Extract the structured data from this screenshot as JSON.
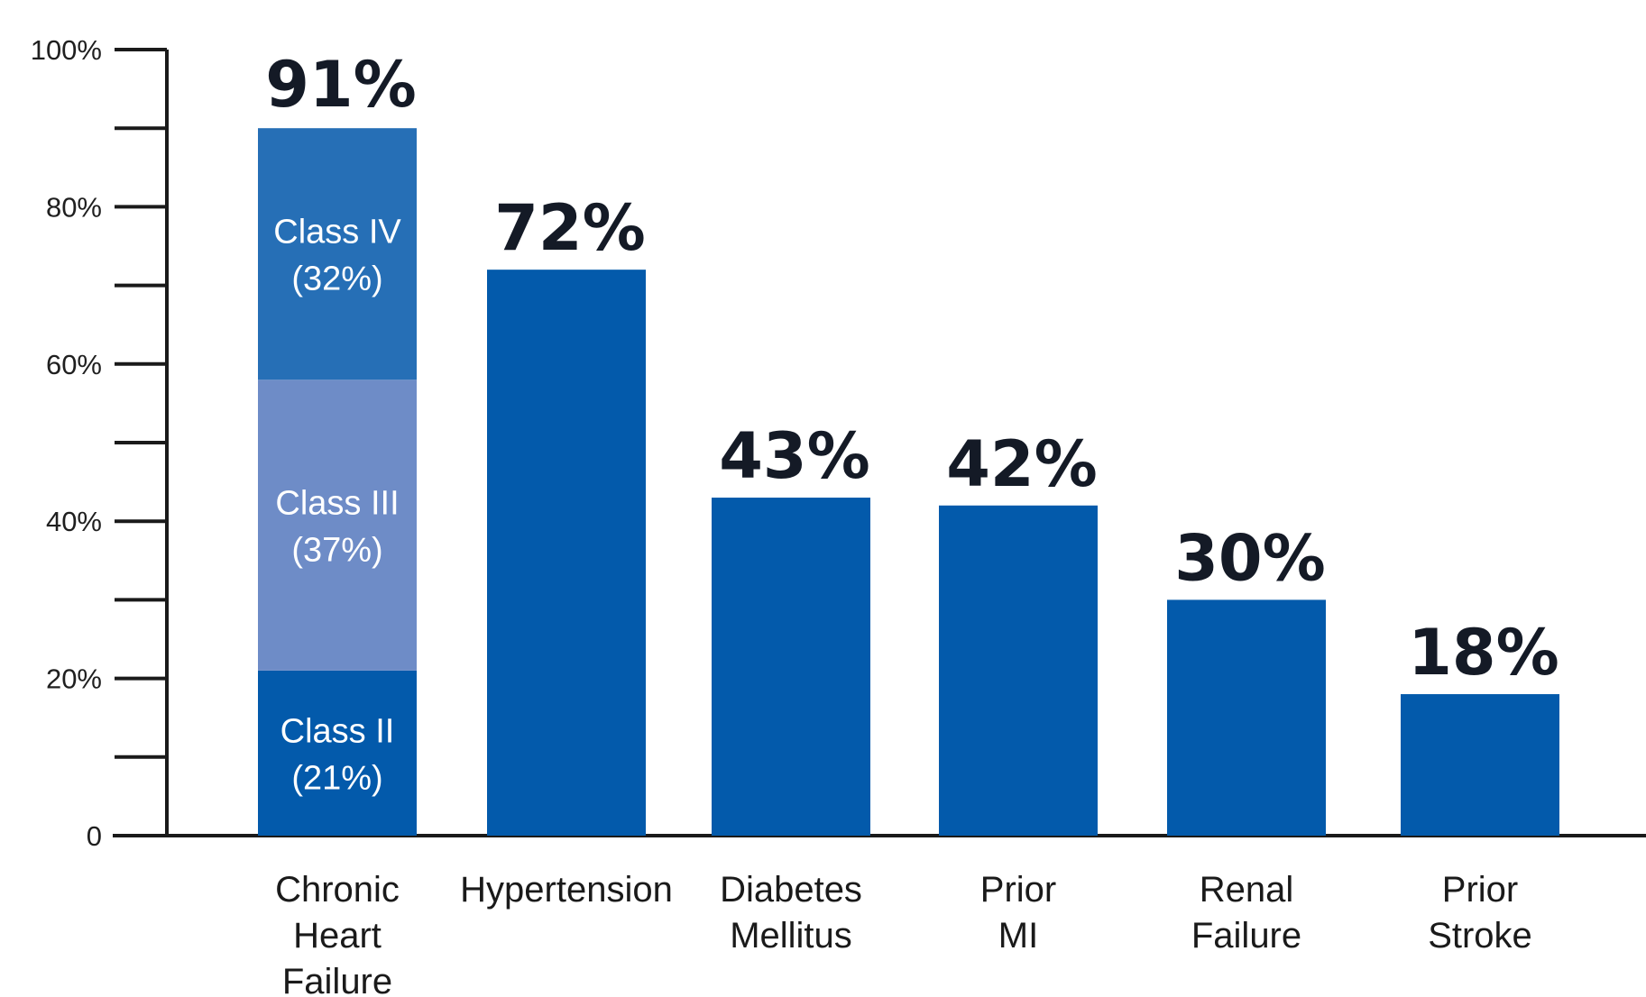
{
  "chart_data": {
    "type": "bar",
    "ylim": [
      0,
      100
    ],
    "y_ticks": [
      0,
      20,
      40,
      60,
      80,
      100
    ],
    "y_tick_labels": [
      "0",
      "20%",
      "40%",
      "60%",
      "80%",
      "100%"
    ],
    "grid": false,
    "colors": {
      "bar": "#035aab",
      "class_ii": "#035aab",
      "class_iii": "#6e8cc7",
      "class_iv": "#266fb6",
      "axis": "#1a1a1a"
    },
    "bars": [
      {
        "category": [
          "Chronic",
          "Heart",
          "Failure"
        ],
        "value": 91,
        "value_label": "91%",
        "segments": [
          {
            "lines": [
              "Class II",
              "(21%)"
            ],
            "value": 21
          },
          {
            "lines": [
              "Class III",
              "(37%)"
            ],
            "value": 37
          },
          {
            "lines": [
              "Class IV",
              "(32%)"
            ],
            "value": 32
          }
        ]
      },
      {
        "category": [
          "Hypertension"
        ],
        "value": 72,
        "value_label": "72%"
      },
      {
        "category": [
          "Diabetes",
          "Mellitus"
        ],
        "value": 43,
        "value_label": "43%"
      },
      {
        "category": [
          "Prior",
          "MI"
        ],
        "value": 42,
        "value_label": "42%"
      },
      {
        "category": [
          "Renal",
          "Failure"
        ],
        "value": 30,
        "value_label": "30%"
      },
      {
        "category": [
          "Prior",
          "Stroke"
        ],
        "value": 18,
        "value_label": "18%"
      }
    ]
  }
}
